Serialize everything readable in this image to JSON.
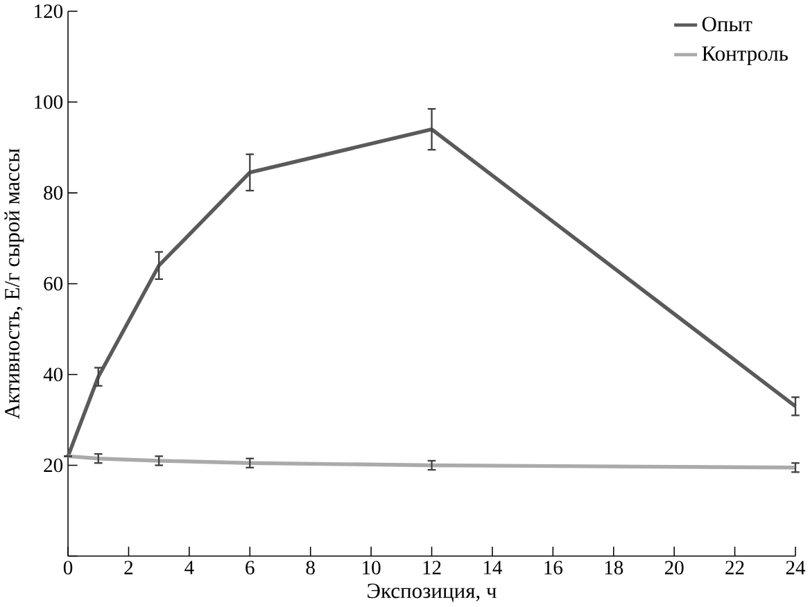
{
  "chart_data": {
    "type": "line",
    "xlabel": "Экспозиция, ч",
    "ylabel": "Активность, Е/г сырой массы",
    "x": [
      0,
      1,
      3,
      6,
      12,
      24
    ],
    "series": [
      {
        "name": "Опыт",
        "color": "#5a5a5a",
        "values": [
          22,
          39.5,
          64,
          84.5,
          94,
          33
        ],
        "errors": [
          null,
          2,
          3,
          4,
          4.5,
          2
        ]
      },
      {
        "name": "Контроль",
        "color": "#aaaaaa",
        "values": [
          22,
          21.5,
          21,
          20.5,
          20,
          19.5
        ],
        "errors": [
          null,
          1,
          1,
          1,
          1,
          1
        ]
      }
    ],
    "xlim": [
      0,
      24
    ],
    "xticks": [
      0,
      2,
      4,
      6,
      8,
      10,
      12,
      14,
      16,
      18,
      20,
      22,
      24
    ],
    "ylim": [
      0,
      120
    ],
    "yticks": [
      {
        "value": 0,
        "label": null
      },
      20,
      40,
      60,
      80,
      100,
      120
    ],
    "legend": "top right",
    "grid": false,
    "marker": "none",
    "line_style": "solid"
  }
}
